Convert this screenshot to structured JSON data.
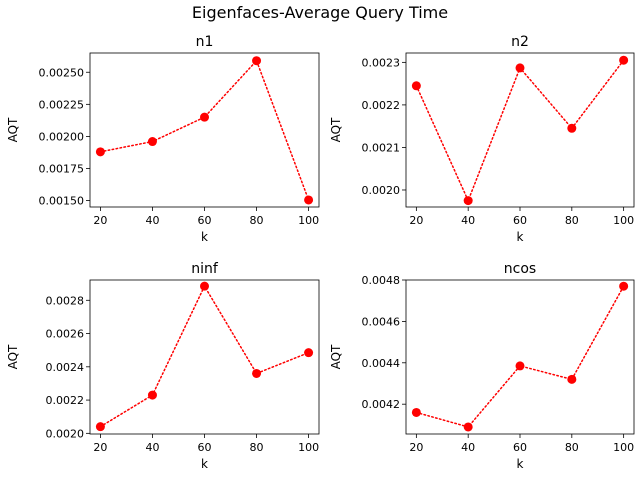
{
  "figure": {
    "title": "Eigenfaces-Average Query Time"
  },
  "chart_data": [
    {
      "type": "line",
      "title": "n1",
      "xlabel": "k",
      "ylabel": "AQT",
      "x": [
        20,
        40,
        60,
        80,
        100
      ],
      "y": [
        0.00188,
        0.00196,
        0.00215,
        0.00259,
        0.001505
      ],
      "xlim": [
        16,
        104
      ],
      "ylim": [
        0.00145,
        0.00265
      ],
      "xticks": [
        20,
        40,
        60,
        80,
        100
      ],
      "yticks": [
        0.0015,
        0.00175,
        0.002,
        0.00225,
        0.0025
      ],
      "yticklabels": [
        "0.00150",
        "0.00175",
        "0.00200",
        "0.00225",
        "0.00250"
      ],
      "color": "#ff0000",
      "linestyle": "dotted",
      "marker": "circle"
    },
    {
      "type": "line",
      "title": "n2",
      "xlabel": "k",
      "ylabel": "AQT",
      "x": [
        20,
        40,
        60,
        80,
        100
      ],
      "y": [
        0.002245,
        0.001975,
        0.002287,
        0.002145,
        0.002305
      ],
      "xlim": [
        16,
        104
      ],
      "ylim": [
        0.00196,
        0.002322
      ],
      "xticks": [
        20,
        40,
        60,
        80,
        100
      ],
      "yticks": [
        0.002,
        0.0021,
        0.0022,
        0.0023
      ],
      "yticklabels": [
        "0.0020",
        "0.0021",
        "0.0022",
        "0.0023"
      ],
      "color": "#ff0000",
      "linestyle": "dotted",
      "marker": "circle"
    },
    {
      "type": "line",
      "title": "ninf",
      "xlabel": "k",
      "ylabel": "AQT",
      "x": [
        20,
        40,
        60,
        80,
        100
      ],
      "y": [
        0.00204,
        0.00223,
        0.002885,
        0.00236,
        0.002485
      ],
      "xlim": [
        16,
        104
      ],
      "ylim": [
        0.001996,
        0.002922
      ],
      "xticks": [
        20,
        40,
        60,
        80,
        100
      ],
      "yticks": [
        0.002,
        0.0022,
        0.0024,
        0.0026,
        0.0028
      ],
      "yticklabels": [
        "0.0020",
        "0.0022",
        "0.0024",
        "0.0026",
        "0.0028"
      ],
      "color": "#ff0000",
      "linestyle": "dotted",
      "marker": "circle"
    },
    {
      "type": "line",
      "title": "ncos",
      "xlabel": "k",
      "ylabel": "AQT",
      "x": [
        20,
        40,
        60,
        80,
        100
      ],
      "y": [
        0.00416,
        0.00409,
        0.004385,
        0.00432,
        0.00477
      ],
      "xlim": [
        16,
        104
      ],
      "ylim": [
        0.004056,
        0.0048
      ],
      "xticks": [
        20,
        40,
        60,
        80,
        100
      ],
      "yticks": [
        0.0042,
        0.0044,
        0.0046,
        0.0048
      ],
      "yticklabels": [
        "0.0042",
        "0.0044",
        "0.0046",
        "0.0048"
      ],
      "color": "#ff0000",
      "linestyle": "dotted",
      "marker": "circle"
    }
  ]
}
